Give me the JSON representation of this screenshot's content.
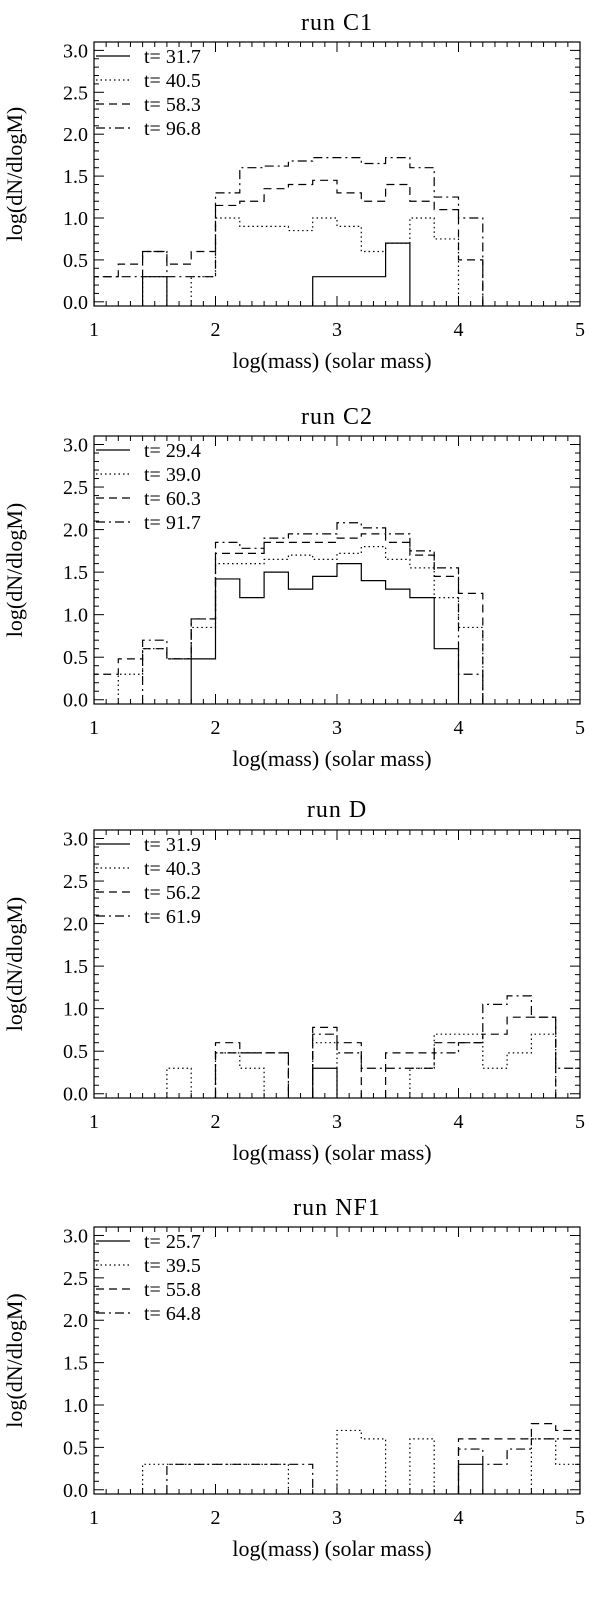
{
  "figure": {
    "xlabel": "log(mass) (solar mass)",
    "ylabel": "log(dN/dlogM)",
    "line_styles": [
      "solid",
      "dotted",
      "dashed",
      "dash-dot"
    ]
  },
  "chart_data": [
    {
      "type": "line",
      "title": "run C1",
      "xlabel": "log(mass) (solar mass)",
      "ylabel": "log(dN/dlogM)",
      "xlim": [
        1,
        5
      ],
      "ylim": [
        -0.05,
        3.1
      ],
      "xticks": [
        1,
        2,
        3,
        4,
        5
      ],
      "yticks": [
        0.0,
        0.5,
        1.0,
        1.5,
        2.0,
        2.5,
        3.0
      ],
      "xtick_labels": [
        "1",
        "2",
        "3",
        "4",
        "5"
      ],
      "ytick_labels": [
        "0.0",
        "0.5",
        "1.0",
        "1.5",
        "2.0",
        "2.5",
        "3.0"
      ],
      "legend_position": "top-left",
      "bin_width": 0.2,
      "series": [
        {
          "name": "t= 31.7",
          "style": "solid",
          "bins": [
            [
              1.4,
              0.3
            ],
            [
              2.8,
              0.3
            ],
            [
              3.0,
              0.3
            ],
            [
              3.2,
              0.3
            ],
            [
              3.4,
              0.7
            ]
          ]
        },
        {
          "name": "t= 40.5",
          "style": "dotted",
          "bins": [
            [
              1.4,
              0.3
            ],
            [
              1.8,
              0.3
            ],
            [
              2.0,
              1.0
            ],
            [
              2.2,
              0.9
            ],
            [
              2.4,
              0.9
            ],
            [
              2.6,
              0.85
            ],
            [
              2.8,
              1.0
            ],
            [
              3.0,
              0.9
            ],
            [
              3.2,
              0.6
            ],
            [
              3.4,
              0.7
            ],
            [
              3.6,
              1.0
            ],
            [
              3.8,
              0.75
            ]
          ]
        },
        {
          "name": "t= 58.3",
          "style": "dashed",
          "bins": [
            [
              1.0,
              0.3
            ],
            [
              1.2,
              0.45
            ],
            [
              1.4,
              0.6
            ],
            [
              1.6,
              0.45
            ],
            [
              1.8,
              0.6
            ],
            [
              2.0,
              1.15
            ],
            [
              2.2,
              1.2
            ],
            [
              2.4,
              1.35
            ],
            [
              2.6,
              1.4
            ],
            [
              2.8,
              1.45
            ],
            [
              3.0,
              1.3
            ],
            [
              3.2,
              1.2
            ],
            [
              3.4,
              1.4
            ],
            [
              3.6,
              1.2
            ],
            [
              3.8,
              1.1
            ],
            [
              4.0,
              0.5
            ]
          ]
        },
        {
          "name": "t= 96.8",
          "style": "dash-dot",
          "bins": [
            [
              1.0,
              0.3
            ],
            [
              1.2,
              0.3
            ],
            [
              1.4,
              0.6
            ],
            [
              1.6,
              0.3
            ],
            [
              1.8,
              0.3
            ],
            [
              2.0,
              1.3
            ],
            [
              2.2,
              1.6
            ],
            [
              2.4,
              1.62
            ],
            [
              2.6,
              1.68
            ],
            [
              2.8,
              1.72
            ],
            [
              3.0,
              1.72
            ],
            [
              3.2,
              1.65
            ],
            [
              3.4,
              1.72
            ],
            [
              3.6,
              1.6
            ],
            [
              3.8,
              1.25
            ],
            [
              4.0,
              1.0
            ]
          ]
        }
      ]
    },
    {
      "type": "line",
      "title": "run C2",
      "xlabel": "log(mass) (solar mass)",
      "ylabel": "log(dN/dlogM)",
      "xlim": [
        1,
        5
      ],
      "ylim": [
        -0.05,
        3.1
      ],
      "xticks": [
        1,
        2,
        3,
        4,
        5
      ],
      "yticks": [
        0.0,
        0.5,
        1.0,
        1.5,
        2.0,
        2.5,
        3.0
      ],
      "xtick_labels": [
        "1",
        "2",
        "3",
        "4",
        "5"
      ],
      "ytick_labels": [
        "0.0",
        "0.5",
        "1.0",
        "1.5",
        "2.0",
        "2.5",
        "3.0"
      ],
      "legend_position": "top-left",
      "bin_width": 0.2,
      "series": [
        {
          "name": "t= 29.4",
          "style": "solid",
          "bins": [
            [
              1.8,
              0.48
            ],
            [
              2.0,
              1.42
            ],
            [
              2.2,
              1.2
            ],
            [
              2.4,
              1.5
            ],
            [
              2.6,
              1.3
            ],
            [
              2.8,
              1.45
            ],
            [
              3.0,
              1.6
            ],
            [
              3.2,
              1.4
            ],
            [
              3.4,
              1.3
            ],
            [
              3.6,
              1.2
            ],
            [
              3.8,
              0.6
            ]
          ]
        },
        {
          "name": "t= 39.0",
          "style": "dotted",
          "bins": [
            [
              1.2,
              0.3
            ],
            [
              1.4,
              0.6
            ],
            [
              1.6,
              0.48
            ],
            [
              1.8,
              0.85
            ],
            [
              2.0,
              1.6
            ],
            [
              2.2,
              1.6
            ],
            [
              2.4,
              1.65
            ],
            [
              2.6,
              1.7
            ],
            [
              2.8,
              1.65
            ],
            [
              3.0,
              1.72
            ],
            [
              3.2,
              1.8
            ],
            [
              3.4,
              1.65
            ],
            [
              3.6,
              1.55
            ],
            [
              3.8,
              1.2
            ],
            [
              4.0,
              0.85
            ]
          ]
        },
        {
          "name": "t= 60.3",
          "style": "dashed",
          "bins": [
            [
              1.0,
              0.3
            ],
            [
              1.2,
              0.48
            ],
            [
              1.4,
              0.6
            ],
            [
              1.6,
              0.48
            ],
            [
              1.8,
              0.95
            ],
            [
              2.0,
              1.72
            ],
            [
              2.2,
              1.72
            ],
            [
              2.4,
              1.85
            ],
            [
              2.6,
              1.85
            ],
            [
              2.8,
              1.85
            ],
            [
              3.0,
              1.9
            ],
            [
              3.2,
              1.95
            ],
            [
              3.4,
              1.85
            ],
            [
              3.6,
              1.7
            ],
            [
              3.8,
              1.45
            ],
            [
              4.0,
              1.25
            ]
          ]
        },
        {
          "name": "t= 91.7",
          "style": "dash-dot",
          "bins": [
            [
              1.4,
              0.7
            ],
            [
              1.6,
              0.48
            ],
            [
              1.8,
              0.95
            ],
            [
              2.0,
              1.85
            ],
            [
              2.2,
              1.78
            ],
            [
              2.4,
              1.9
            ],
            [
              2.6,
              1.95
            ],
            [
              2.8,
              1.95
            ],
            [
              3.0,
              2.08
            ],
            [
              3.2,
              2.02
            ],
            [
              3.4,
              1.95
            ],
            [
              3.6,
              1.75
            ],
            [
              3.8,
              1.55
            ],
            [
              4.0,
              0.3
            ]
          ]
        }
      ]
    },
    {
      "type": "line",
      "title": "run D",
      "xlabel": "log(mass) (solar mass)",
      "ylabel": "log(dN/dlogM)",
      "xlim": [
        1,
        5
      ],
      "ylim": [
        -0.05,
        3.1
      ],
      "xticks": [
        1,
        2,
        3,
        4,
        5
      ],
      "yticks": [
        0.0,
        0.5,
        1.0,
        1.5,
        2.0,
        2.5,
        3.0
      ],
      "xtick_labels": [
        "1",
        "2",
        "3",
        "4",
        "5"
      ],
      "ytick_labels": [
        "0.0",
        "0.5",
        "1.0",
        "1.5",
        "2.0",
        "2.5",
        "3.0"
      ],
      "legend_position": "top-left",
      "bin_width": 0.2,
      "series": [
        {
          "name": "t= 31.9",
          "style": "solid",
          "bins": [
            [
              2.8,
              0.3
            ]
          ]
        },
        {
          "name": "t= 40.3",
          "style": "dotted",
          "bins": [
            [
              1.6,
              0.3
            ],
            [
              2.0,
              0.48
            ],
            [
              2.2,
              0.3
            ],
            [
              2.8,
              0.6
            ],
            [
              3.6,
              0.3
            ],
            [
              3.8,
              0.7
            ],
            [
              4.0,
              0.7
            ],
            [
              4.2,
              0.3
            ],
            [
              4.4,
              0.48
            ],
            [
              4.6,
              0.7
            ]
          ]
        },
        {
          "name": "t= 56.2",
          "style": "dashed",
          "bins": [
            [
              2.0,
              0.6
            ],
            [
              2.2,
              0.48
            ],
            [
              2.4,
              0.48
            ],
            [
              2.8,
              0.78
            ],
            [
              3.0,
              0.6
            ],
            [
              3.4,
              0.48
            ],
            [
              3.6,
              0.48
            ],
            [
              3.8,
              0.6
            ],
            [
              4.0,
              0.6
            ],
            [
              4.2,
              0.7
            ],
            [
              4.4,
              0.9
            ],
            [
              4.6,
              0.9
            ]
          ]
        },
        {
          "name": "t= 61.9",
          "style": "dash-dot",
          "bins": [
            [
              2.0,
              0.48
            ],
            [
              2.2,
              0.48
            ],
            [
              2.4,
              0.48
            ],
            [
              2.8,
              0.7
            ],
            [
              3.0,
              0.48
            ],
            [
              3.2,
              0.3
            ],
            [
              3.4,
              0.3
            ],
            [
              3.6,
              0.3
            ],
            [
              3.8,
              0.48
            ],
            [
              4.0,
              0.6
            ],
            [
              4.2,
              1.05
            ],
            [
              4.4,
              1.15
            ],
            [
              4.6,
              0.9
            ],
            [
              4.8,
              0.3
            ]
          ]
        }
      ]
    },
    {
      "type": "line",
      "title": "run NF1",
      "xlabel": "log(mass) (solar mass)",
      "ylabel": "log(dN/dlogM)",
      "xlim": [
        1,
        5
      ],
      "ylim": [
        -0.05,
        3.1
      ],
      "xticks": [
        1,
        2,
        3,
        4,
        5
      ],
      "yticks": [
        0.0,
        0.5,
        1.0,
        1.5,
        2.0,
        2.5,
        3.0
      ],
      "xtick_labels": [
        "1",
        "2",
        "3",
        "4",
        "5"
      ],
      "ytick_labels": [
        "0.0",
        "0.5",
        "1.0",
        "1.5",
        "2.0",
        "2.5",
        "3.0"
      ],
      "legend_position": "top-left",
      "bin_width": 0.2,
      "series": [
        {
          "name": "t= 25.7",
          "style": "solid",
          "bins": [
            [
              4.0,
              0.3
            ]
          ]
        },
        {
          "name": "t= 39.5",
          "style": "dotted",
          "bins": [
            [
              1.4,
              0.3
            ],
            [
              1.6,
              0.3
            ],
            [
              1.8,
              0.3
            ],
            [
              2.0,
              0.3
            ],
            [
              2.2,
              0.3
            ],
            [
              2.4,
              0.3
            ],
            [
              3.0,
              0.7
            ],
            [
              3.2,
              0.6
            ],
            [
              3.6,
              0.6
            ],
            [
              4.6,
              0.6
            ],
            [
              4.8,
              0.3
            ]
          ]
        },
        {
          "name": "t= 55.8",
          "style": "dashed",
          "bins": [
            [
              4.0,
              0.6
            ],
            [
              4.2,
              0.6
            ],
            [
              4.4,
              0.6
            ],
            [
              4.6,
              0.78
            ],
            [
              4.8,
              0.7
            ]
          ]
        },
        {
          "name": "t= 64.8",
          "style": "dash-dot",
          "bins": [
            [
              1.6,
              0.3
            ],
            [
              1.8,
              0.3
            ],
            [
              2.0,
              0.3
            ],
            [
              2.2,
              0.3
            ],
            [
              2.4,
              0.3
            ],
            [
              2.6,
              0.3
            ],
            [
              4.0,
              0.48
            ],
            [
              4.2,
              0.3
            ],
            [
              4.4,
              0.48
            ],
            [
              4.6,
              0.6
            ],
            [
              4.8,
              0.6
            ]
          ]
        }
      ]
    }
  ]
}
